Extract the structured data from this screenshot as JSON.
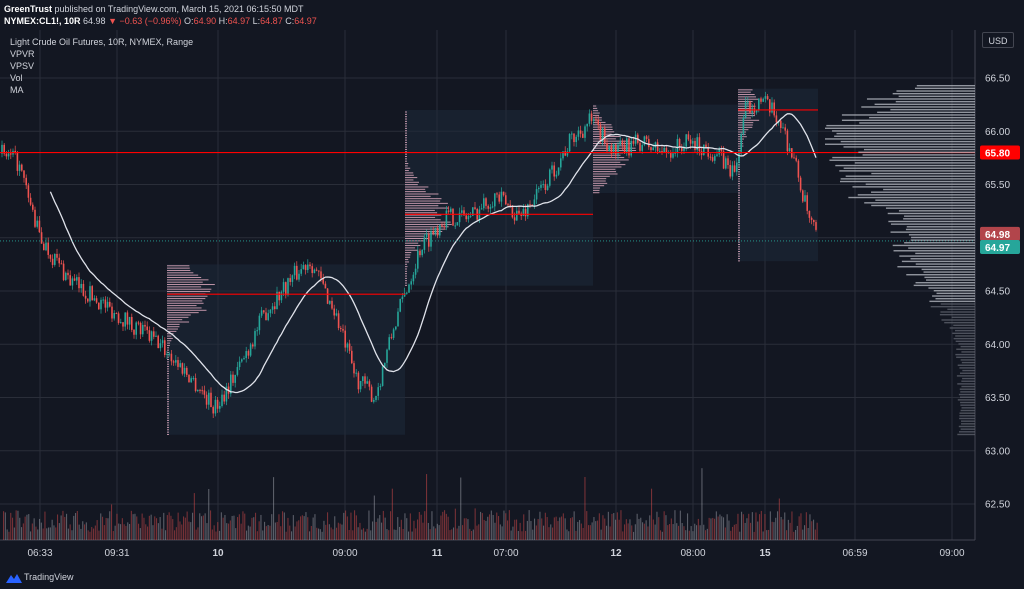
{
  "header": {
    "publisher": "GreenTrust",
    "published_text": "published on TradingView.com, March 15, 2021 06:15:50 MDT",
    "symbol": "NYMEX:CL1!, 10R",
    "last": "64.98",
    "change": "▼ −0.63 (−0.96%)",
    "o_label": "O:",
    "o_value": "64.90",
    "h_label": "H:",
    "h_value": "64.97",
    "l_label": "L:",
    "l_value": "64.87",
    "c_label": "C:",
    "c_value": "64.97"
  },
  "legend": {
    "title": "Light Crude Oil Futures, 10R, NYMEX, Range",
    "items": [
      "VPVR",
      "VPSV",
      "Vol",
      "MA"
    ]
  },
  "currency": "USD",
  "footer": {
    "brand": "TradingView"
  },
  "colors": {
    "bg": "#131722",
    "grid": "#2a2e39",
    "up": "#26a69a",
    "down": "#ef5350",
    "poc": "#ff0000",
    "ma": "#e0e3eb",
    "vp_dark": "#5d606b",
    "vp_light": "#b2b5be",
    "box": "#1e2a3a",
    "vp_session": "#f8bbd0"
  },
  "chart_data": {
    "type": "candlestick",
    "ylim": [
      62.2,
      66.7
    ],
    "y_ticks": [
      "66.50",
      "66.00",
      "65.50",
      "65.00",
      "64.50",
      "64.00",
      "63.50",
      "63.00",
      "62.50"
    ],
    "x_ticks": [
      "06:33",
      "09:31",
      "10",
      "09:00",
      "11",
      "07:00",
      "12",
      "08:00",
      "15",
      "06:59",
      "09:00"
    ],
    "price_labels": [
      {
        "value": 65.8,
        "text": "65.80",
        "color": "#ff0000"
      },
      {
        "value": 64.98,
        "text": "64.98",
        "color": "#b2454b"
      },
      {
        "value": 64.97,
        "text": "64.97",
        "color": "#26a69a"
      }
    ],
    "price_path": [
      [
        0,
        65.8
      ],
      [
        18,
        65.7
      ],
      [
        40,
        65.0
      ],
      [
        70,
        64.6
      ],
      [
        100,
        64.4
      ],
      [
        130,
        64.2
      ],
      [
        160,
        64.0
      ],
      [
        190,
        63.7
      ],
      [
        215,
        63.4
      ],
      [
        240,
        63.8
      ],
      [
        265,
        64.3
      ],
      [
        290,
        64.6
      ],
      [
        310,
        64.8
      ],
      [
        335,
        64.3
      ],
      [
        355,
        63.7
      ],
      [
        375,
        63.5
      ],
      [
        395,
        64.2
      ],
      [
        420,
        64.9
      ],
      [
        445,
        65.2
      ],
      [
        470,
        65.2
      ],
      [
        495,
        65.4
      ],
      [
        520,
        65.2
      ],
      [
        545,
        65.5
      ],
      [
        570,
        65.9
      ],
      [
        590,
        66.1
      ],
      [
        615,
        65.8
      ],
      [
        640,
        65.9
      ],
      [
        665,
        65.8
      ],
      [
        690,
        65.9
      ],
      [
        715,
        65.8
      ],
      [
        735,
        65.6
      ],
      [
        745,
        66.2
      ],
      [
        760,
        66.3
      ],
      [
        780,
        66.1
      ],
      [
        795,
        65.7
      ],
      [
        808,
        65.2
      ],
      [
        818,
        64.97
      ]
    ],
    "session_profiles": [
      {
        "x0": 167,
        "x1": 405,
        "low": 63.15,
        "high": 64.75,
        "poc": 64.47
      },
      {
        "x0": 405,
        "x1": 593,
        "low": 64.55,
        "high": 66.2,
        "poc": 65.22
      },
      {
        "x0": 593,
        "x1": 738,
        "low": 65.42,
        "high": 66.25,
        "poc": 65.8
      },
      {
        "x0": 738,
        "x1": 818,
        "low": 64.78,
        "high": 66.4,
        "poc": 66.2
      }
    ],
    "poc_lines": [
      {
        "value": 65.8,
        "x0": 0,
        "x1": 975
      },
      {
        "value": 64.47,
        "x0": 167,
        "x1": 405
      },
      {
        "value": 65.22,
        "x0": 405,
        "x1": 593
      },
      {
        "value": 66.2,
        "x0": 738,
        "x1": 818
      }
    ]
  }
}
